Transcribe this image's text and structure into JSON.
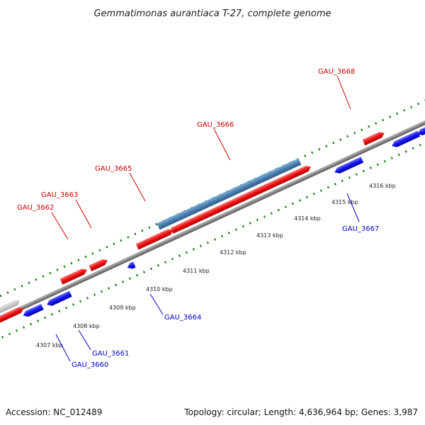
{
  "header": {
    "title": "Gemmatimonas aurantiaca T-27, complete genome"
  },
  "footer": {
    "accession": "Accession: NC_012489",
    "summary": "Topology: circular; Length: 4,636,964 bp; Genes: 3,987"
  },
  "colors": {
    "forward_gene": "#ff1a1a",
    "reverse_gene": "#1a1aff",
    "highlight_gene": "#4a7fb0",
    "label_forward": "#cc0000",
    "label_reverse": "#0000cc",
    "tick": "#117711"
  },
  "ticks": [
    "4307 kbp",
    "4308 kbp",
    "4309 kbp",
    "4310 kbp",
    "4311 kbp",
    "4312 kbp",
    "4313 kbp",
    "4314 kbp",
    "4315 kbp",
    "4316 kbp"
  ],
  "genes_top": [
    "GAU_3662",
    "GAU_3663",
    "GAU_3665",
    "GAU_3666",
    "GAU_3668"
  ],
  "genes_bottom": [
    "GAU_3660",
    "GAU_3661",
    "GAU_3664",
    "GAU_3667"
  ]
}
